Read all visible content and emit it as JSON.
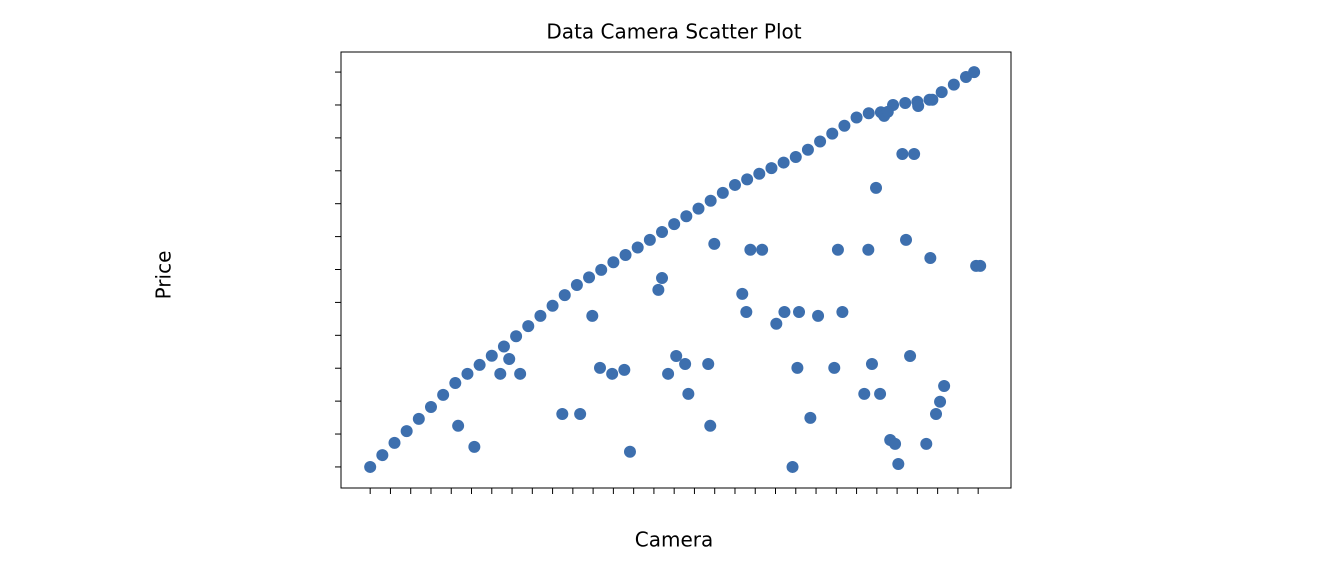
{
  "chart_data": {
    "type": "scatter",
    "title": "Data Camera Scatter Plot",
    "x_label": "Camera",
    "y_label": "Price",
    "color": "#3d6fae",
    "xlim": [
      -7.2,
      158.1
    ],
    "ylim": [
      -6.4,
      126.1
    ],
    "xticks": [
      0,
      5,
      10,
      15,
      20,
      25,
      30,
      35,
      40,
      45,
      50,
      55,
      60,
      65,
      70,
      75,
      80,
      85,
      90,
      95,
      100,
      105,
      110,
      115,
      120,
      125,
      130,
      135,
      140,
      145,
      150
    ],
    "yticks": [
      0,
      10,
      20,
      30,
      40,
      50,
      60,
      70,
      80,
      90,
      100,
      110,
      120
    ],
    "x": [
      0,
      3,
      6,
      9,
      12,
      15,
      18,
      21,
      24,
      27,
      30,
      33,
      36,
      39,
      42,
      45,
      48,
      51,
      54,
      57,
      60,
      63,
      66,
      69,
      72,
      75,
      78,
      81,
      84,
      87,
      90,
      93,
      96,
      99,
      102,
      105,
      108,
      111,
      114,
      117,
      120,
      123,
      126,
      129,
      132,
      135,
      138,
      141,
      144,
      147,
      149,
      21.7,
      25.7,
      32.1,
      34.3,
      37,
      54.8,
      47.4,
      51.8,
      56.7,
      59.7,
      62.7,
      64.1,
      71.1,
      72,
      73.5,
      75.5,
      77.7,
      78.5,
      83.4,
      83.9,
      84.9,
      91.8,
      92.8,
      93.8,
      96.7,
      100.2,
      102.2,
      104.2,
      105.4,
      105.8,
      108.6,
      110.5,
      114.5,
      115.4,
      116.5,
      121.9,
      122.9,
      123.8,
      124.8,
      125.8,
      128.3,
      129.5,
      130.3,
      131.3,
      132.2,
      133.2,
      134.2,
      137.2,
      138.2,
      139.6,
      140.6,
      141.6,
      149.5,
      150.5,
      126.8,
      127.7,
      135.2,
      138.7
    ],
    "y": [
      0,
      3.6,
      7.3,
      10.9,
      14.6,
      18.2,
      21.9,
      25.5,
      28.3,
      31,
      33.8,
      36.6,
      39.7,
      42.8,
      45.9,
      49,
      52.2,
      55.3,
      57.6,
      59.9,
      62.2,
      64.4,
      66.7,
      69,
      71.4,
      73.8,
      76.2,
      78.5,
      80.9,
      83.3,
      85.7,
      87.4,
      89.1,
      90.8,
      92.5,
      94.2,
      96.4,
      98.9,
      101.3,
      103.7,
      106.2,
      107.5,
      107.8,
      110,
      110.6,
      111,
      111.6,
      113.9,
      116.2,
      118.5,
      120,
      12.5,
      6.1,
      28.3,
      32.8,
      28.3,
      45.9,
      16.1,
      16.1,
      30.1,
      28.3,
      29.5,
      4.6,
      53.8,
      57.4,
      28.3,
      33.7,
      31.3,
      22.2,
      31.3,
      12.5,
      67.8,
      52.6,
      47.1,
      66,
      66,
      43.5,
      47.1,
      0,
      30.1,
      47.1,
      14.9,
      45.9,
      30.1,
      66,
      47.1,
      22.2,
      66,
      31.3,
      84.8,
      22.2,
      8.2,
      7,
      0.9,
      95.1,
      69,
      33.7,
      95.1,
      7,
      63.5,
      16.1,
      19.8,
      24.6,
      61.1,
      61.1,
      106.7,
      107.9,
      109.7,
      111.6
    ]
  }
}
